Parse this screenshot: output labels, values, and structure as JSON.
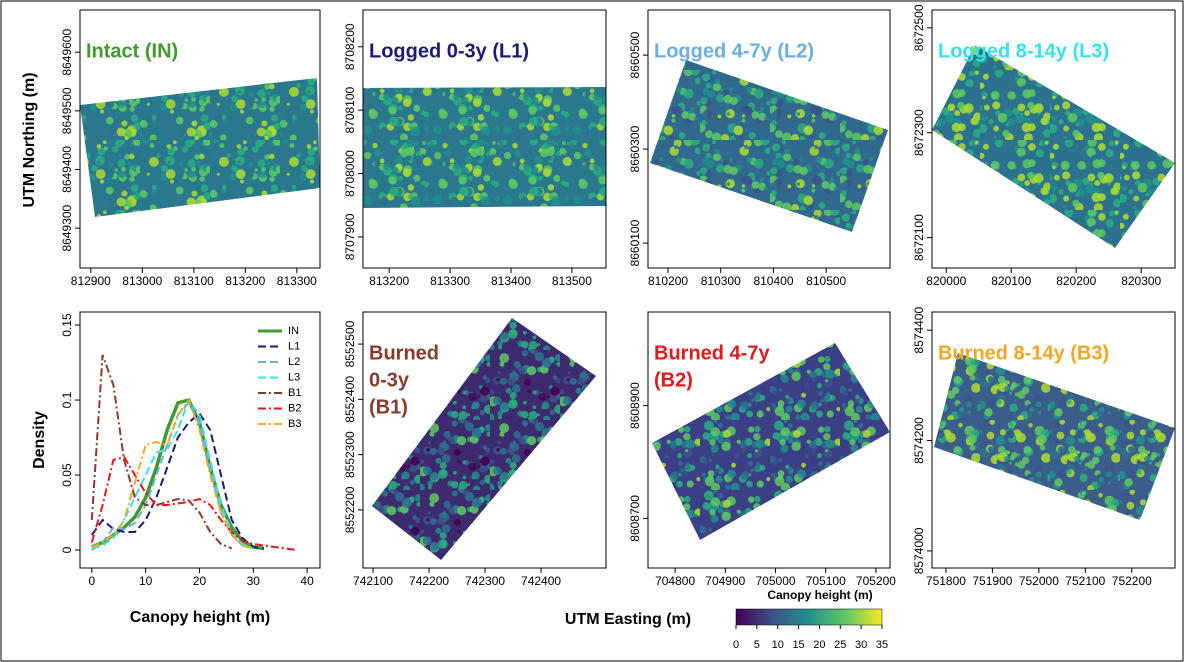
{
  "chart_data": [
    {
      "type": "map",
      "title": [
        "Intact (IN)"
      ],
      "color": "#3f9b2c",
      "xlim": [
        812879,
        813345
      ],
      "ylim": [
        8649232,
        8649672
      ],
      "xticks": [
        812900,
        813000,
        813100,
        813200,
        813300
      ],
      "yticks": [
        8649300,
        8649400,
        8649500,
        8649600
      ]
    },
    {
      "type": "map",
      "title": [
        "Logged 0-3y (L1)"
      ],
      "color": "#1a1a78",
      "xlim": [
        813157,
        813556
      ],
      "ylim": [
        8707851,
        8708258
      ],
      "xticks": [
        813200,
        813300,
        813400,
        813500
      ],
      "yticks": [
        8707900,
        8708000,
        8708100,
        8708200
      ]
    },
    {
      "type": "map",
      "title": [
        "Logged 4-7y (L2)"
      ],
      "color": "#6aaee2",
      "xlim": [
        810162,
        810621
      ],
      "ylim": [
        8660047,
        8660596
      ],
      "xticks": [
        810200,
        810300,
        810400,
        810500
      ],
      "yticks": [
        8660100,
        8660300,
        8660500
      ]
    },
    {
      "type": "map",
      "title": [
        "Logged 8-14y (L3)"
      ],
      "color": "#35e3ee",
      "xlim": [
        819978,
        820352
      ],
      "ylim": [
        8672042,
        8672534
      ],
      "xticks": [
        820000,
        820100,
        820200,
        820300
      ],
      "yticks": [
        8672100,
        8672300,
        8672500
      ]
    },
    {
      "type": "map",
      "title": [
        "Burned",
        "0-3y",
        "(B1)"
      ],
      "color": "#8b3a2a",
      "xlim": [
        742082,
        742516
      ],
      "ylim": [
        8552095,
        8552558
      ],
      "xticks": [
        742100,
        742200,
        742300,
        742400
      ],
      "yticks": [
        8552200,
        8552300,
        8552400,
        8552500
      ]
    },
    {
      "type": "map",
      "title": [
        "Burned 4-7y",
        "(B2)"
      ],
      "color": "#e31a1c",
      "xlim": [
        704746,
        705228
      ],
      "ylim": [
        8608612,
        8609066
      ],
      "xticks": [
        704800,
        704900,
        705000,
        705100,
        705200
      ],
      "yticks": [
        8608700,
        8608900
      ]
    },
    {
      "type": "map",
      "title": [
        "Burned 8-14y (B3)"
      ],
      "color": "#f5a623",
      "xlim": [
        751770,
        752293
      ],
      "ylim": [
        8573969,
        8574433
      ],
      "xticks": [
        751800,
        751900,
        752000,
        752100,
        752200
      ],
      "yticks": [
        8574000,
        8574200,
        8574400
      ]
    },
    {
      "type": "line",
      "xlabel": "Canopy height (m)",
      "ylabel": "Density",
      "xlim": [
        -2.2,
        42.4
      ],
      "ylim": [
        -0.012,
        0.1587
      ],
      "xticks": [
        0,
        10,
        20,
        30,
        40
      ],
      "yticks": [
        0,
        0.05,
        0.1,
        0.15
      ],
      "legend": "top-right",
      "x": [
        0,
        2,
        4,
        6,
        8,
        10,
        12,
        14,
        16,
        18,
        20,
        22,
        24,
        26,
        28,
        30,
        32,
        34,
        36,
        38,
        40
      ],
      "series": [
        {
          "name": "IN",
          "color": "#3f9b2c",
          "dash": "solid",
          "values": [
            0.002,
            0.005,
            0.01,
            0.015,
            0.022,
            0.035,
            0.055,
            0.08,
            0.098,
            0.1,
            0.085,
            0.055,
            0.03,
            0.015,
            0.006,
            0.002,
            0.001,
            null,
            null,
            null,
            null
          ]
        },
        {
          "name": "L1",
          "color": "#1a1a78",
          "dash": "dashed",
          "values": [
            0.01,
            0.02,
            0.014,
            0.012,
            0.012,
            0.02,
            0.035,
            0.055,
            0.075,
            0.085,
            0.091,
            0.08,
            0.05,
            0.02,
            0.008,
            0.002,
            0.001,
            null,
            null,
            null,
            null
          ]
        },
        {
          "name": "L2",
          "color": "#6aaee2",
          "dash": "dashed",
          "values": [
            0,
            0.005,
            0.015,
            0.014,
            0.018,
            0.03,
            0.05,
            0.07,
            0.09,
            0.098,
            0.085,
            0.055,
            0.025,
            0.01,
            0.003,
            0.001,
            null,
            null,
            null,
            null,
            null
          ]
        },
        {
          "name": "L3",
          "color": "#35e3ee",
          "dash": "dashed",
          "values": [
            0.001,
            0.003,
            0.008,
            0.02,
            0.035,
            0.05,
            0.065,
            0.067,
            0.08,
            0.1,
            0.09,
            0.06,
            0.03,
            0.012,
            0.004,
            0.001,
            null,
            null,
            null,
            null,
            null
          ]
        },
        {
          "name": "B1",
          "color": "#8b3a2a",
          "dash": "dashdot",
          "values": [
            0.02,
            0.13,
            0.11,
            0.06,
            0.035,
            0.03,
            0.03,
            0.032,
            0.034,
            0.033,
            0.025,
            0.012,
            0.004,
            0.001,
            null,
            null,
            null,
            null,
            null,
            null,
            null
          ]
        },
        {
          "name": "B2",
          "color": "#e31a1c",
          "dash": "dashdot",
          "values": [
            0.005,
            0.03,
            0.06,
            0.062,
            0.05,
            0.038,
            0.03,
            0.03,
            0.031,
            0.032,
            0.034,
            0.03,
            0.02,
            0.012,
            0.006,
            0.004,
            0.003,
            0.002,
            0.001,
            0,
            null
          ]
        },
        {
          "name": "B3",
          "color": "#f5a623",
          "dash": "dashdot",
          "values": [
            0.002,
            0.005,
            0.01,
            0.02,
            0.045,
            0.07,
            0.072,
            0.07,
            0.09,
            0.1,
            0.08,
            0.05,
            0.025,
            0.01,
            0.003,
            0.001,
            null,
            null,
            null,
            null,
            null
          ]
        }
      ]
    }
  ],
  "figure": {
    "ylabel": "UTM Northing (m)",
    "xlabel": "UTM Easting (m)",
    "colorbar": {
      "title": "Canopy height (m)",
      "lim": [
        0,
        35
      ],
      "ticks": [
        0,
        5,
        10,
        15,
        20,
        25,
        30,
        35
      ]
    }
  }
}
